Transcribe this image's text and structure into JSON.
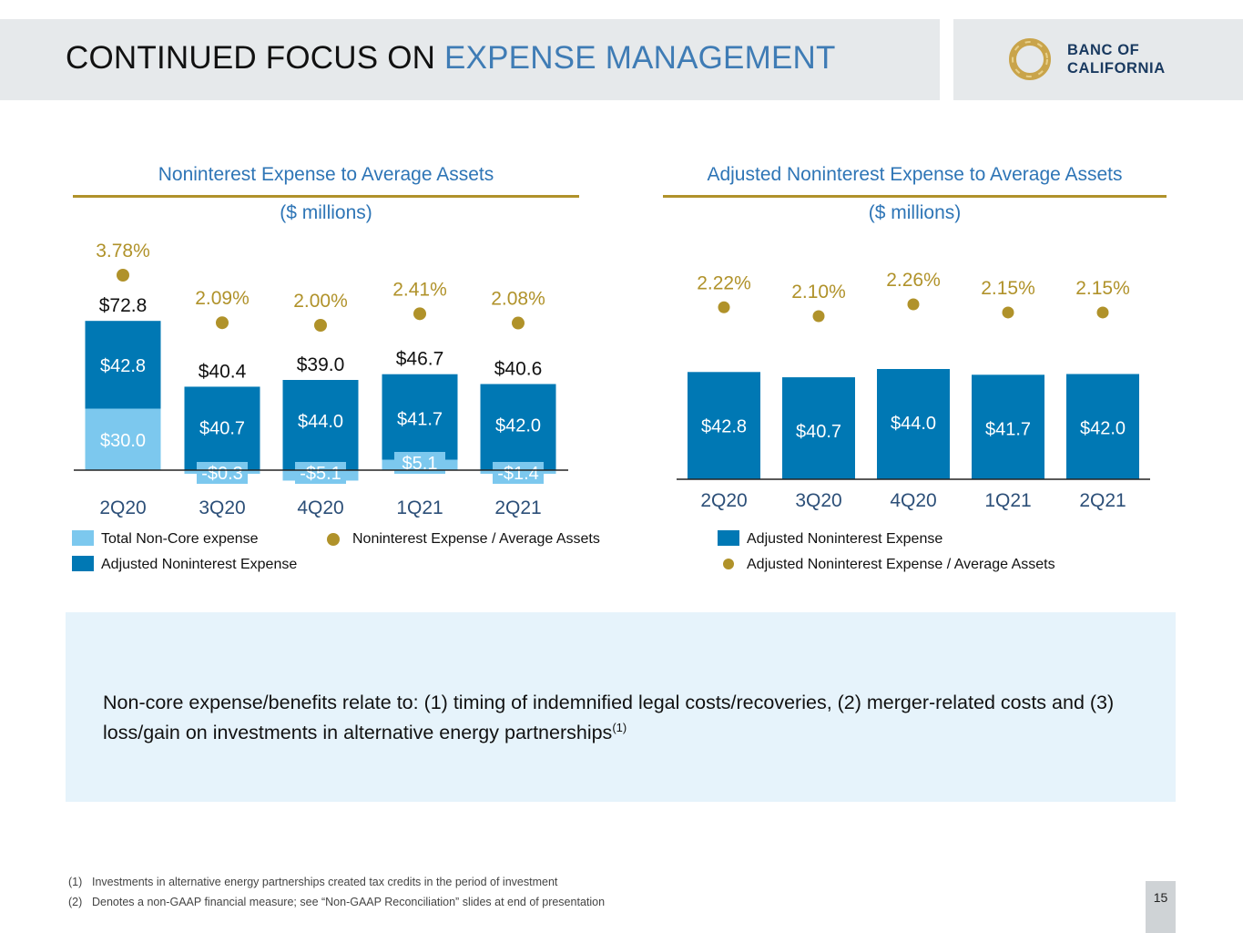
{
  "header": {
    "title_main": "CONTINUED FOCUS ON ",
    "title_accent": "EXPENSE MANAGEMENT",
    "logo_line1": "BANC OF",
    "logo_line2": "CALIFORNIA"
  },
  "colors": {
    "accent_blue": "#3f7cb5",
    "bar_dark": "#0078b4",
    "bar_light": "#7cc8ee",
    "gold": "#b0922a"
  },
  "chart_data": [
    {
      "type": "bar",
      "title": "Noninterest Expense to Average Assets",
      "subtitle": "($ millions)",
      "categories": [
        "2Q20",
        "3Q20",
        "4Q20",
        "1Q21",
        "2Q21"
      ],
      "series": [
        {
          "name": "Total Non-Core expense",
          "values": [
            30.0,
            -0.3,
            -5.1,
            5.1,
            -1.4
          ],
          "labels": [
            "$30.0",
            "-$0.3",
            "-$5.1",
            "$5.1",
            "-$1.4"
          ]
        },
        {
          "name": "Adjusted Noninterest Expense",
          "values": [
            42.8,
            40.7,
            44.0,
            41.7,
            42.0
          ],
          "labels": [
            "$42.8",
            "$40.7",
            "$44.0",
            "$41.7",
            "$42.0"
          ]
        }
      ],
      "totals": [
        72.8,
        40.4,
        39.0,
        46.7,
        40.6
      ],
      "total_labels": [
        "$72.8",
        "$40.4",
        "$39.0",
        "$46.7",
        "$40.6"
      ],
      "ratio_series": {
        "name": "Noninterest Expense / Average Assets",
        "values": [
          3.78,
          2.09,
          2.0,
          2.41,
          2.08
        ],
        "labels": [
          "3.78%",
          "2.09%",
          "2.00%",
          "2.41%",
          "2.08%"
        ]
      },
      "legend": [
        "Total Non-Core expense",
        "Adjusted Noninterest Expense",
        "Noninterest Expense / Average Assets"
      ]
    },
    {
      "type": "bar",
      "title": "Adjusted Noninterest Expense to Average Assets",
      "subtitle": "($ millions)",
      "categories": [
        "2Q20",
        "3Q20",
        "4Q20",
        "1Q21",
        "2Q21"
      ],
      "series": [
        {
          "name": "Adjusted Noninterest Expense",
          "values": [
            42.8,
            40.7,
            44.0,
            41.7,
            42.0
          ],
          "labels": [
            "$42.8",
            "$40.7",
            "$44.0",
            "$41.7",
            "$42.0"
          ]
        }
      ],
      "ratio_series": {
        "name": "Adjusted Noninterest Expense / Average Assets",
        "values": [
          2.22,
          2.1,
          2.26,
          2.15,
          2.15
        ],
        "labels": [
          "2.22%",
          "2.10%",
          "2.26%",
          "2.15%",
          "2.15%"
        ]
      },
      "legend": [
        "Adjusted Noninterest Expense",
        "Adjusted Noninterest Expense / Average Assets"
      ]
    }
  ],
  "note": {
    "text": "Non-core expense/benefits relate to: (1) timing of indemnified legal costs/recoveries, (2) merger-related costs and (3) loss/gain on investments in alternative energy partnerships",
    "sup": "(1)"
  },
  "footnotes": [
    {
      "num": "(1)",
      "text": "Investments in alternative energy partnerships created tax credits in the period of investment"
    },
    {
      "num": "(2)",
      "text": "Denotes a non-GAAP financial measure; see “Non-GAAP Reconciliation” slides at end of presentation"
    }
  ],
  "page_number": "15"
}
